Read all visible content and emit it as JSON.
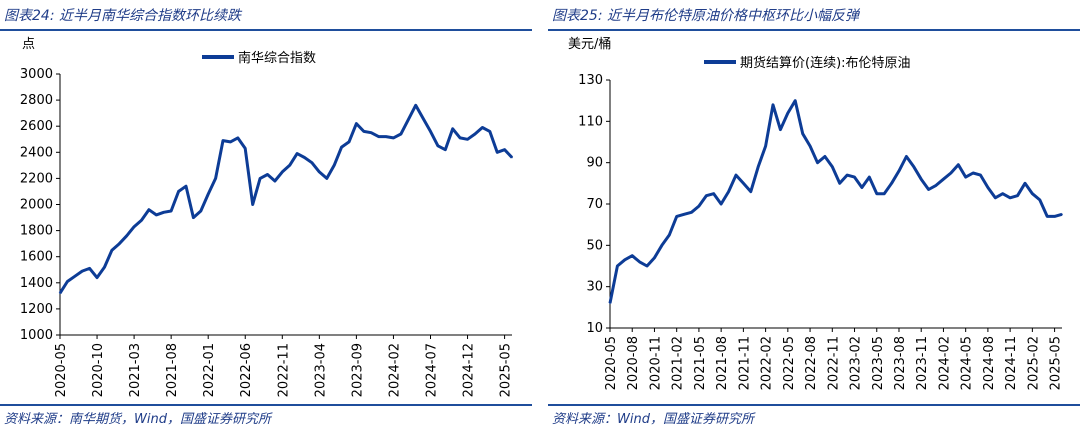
{
  "left": {
    "title": "图表24:  近半月南华综合指数环比续跌",
    "source": "资料来源：南华期货，Wind，国盛证券研究所",
    "chart_data": {
      "type": "line",
      "unit_label": "点",
      "legend": "南华综合指数",
      "legend_position": "top-center",
      "ylim": [
        1000,
        3000
      ],
      "yticks": [
        1000,
        1200,
        1400,
        1600,
        1800,
        2000,
        2200,
        2400,
        2600,
        2800,
        3000
      ],
      "xlim": [
        "2020-05",
        "2025-06"
      ],
      "xticks": [
        "2020-05",
        "2020-10",
        "2021-03",
        "2021-08",
        "2022-01",
        "2022-06",
        "2022-11",
        "2023-04",
        "2023-09",
        "2024-02",
        "2024-07",
        "2024-12",
        "2025-05"
      ],
      "color": "#0d3c96",
      "series": [
        {
          "points": [
            [
              "2020-05",
              1320
            ],
            [
              "2020-06",
              1410
            ],
            [
              "2020-07",
              1450
            ],
            [
              "2020-08",
              1490
            ],
            [
              "2020-09",
              1510
            ],
            [
              "2020-10",
              1440
            ],
            [
              "2020-11",
              1520
            ],
            [
              "2020-12",
              1650
            ],
            [
              "2021-01",
              1700
            ],
            [
              "2021-02",
              1760
            ],
            [
              "2021-03",
              1830
            ],
            [
              "2021-04",
              1880
            ],
            [
              "2021-05",
              1960
            ],
            [
              "2021-06",
              1920
            ],
            [
              "2021-07",
              1940
            ],
            [
              "2021-08",
              1950
            ],
            [
              "2021-09",
              2100
            ],
            [
              "2021-10",
              2140
            ],
            [
              "2021-11",
              1900
            ],
            [
              "2021-12",
              1950
            ],
            [
              "2022-01",
              2080
            ],
            [
              "2022-02",
              2200
            ],
            [
              "2022-03",
              2490
            ],
            [
              "2022-04",
              2480
            ],
            [
              "2022-05",
              2510
            ],
            [
              "2022-06",
              2430
            ],
            [
              "2022-07",
              2000
            ],
            [
              "2022-08",
              2200
            ],
            [
              "2022-09",
              2230
            ],
            [
              "2022-10",
              2180
            ],
            [
              "2022-11",
              2250
            ],
            [
              "2022-12",
              2300
            ],
            [
              "2023-01",
              2390
            ],
            [
              "2023-02",
              2360
            ],
            [
              "2023-03",
              2320
            ],
            [
              "2023-04",
              2250
            ],
            [
              "2023-05",
              2200
            ],
            [
              "2023-06",
              2300
            ],
            [
              "2023-07",
              2440
            ],
            [
              "2023-08",
              2480
            ],
            [
              "2023-09",
              2620
            ],
            [
              "2023-10",
              2560
            ],
            [
              "2023-11",
              2550
            ],
            [
              "2023-12",
              2520
            ],
            [
              "2024-01",
              2520
            ],
            [
              "2024-02",
              2510
            ],
            [
              "2024-03",
              2540
            ],
            [
              "2024-04",
              2650
            ],
            [
              "2024-05",
              2760
            ],
            [
              "2024-06",
              2660
            ],
            [
              "2024-07",
              2560
            ],
            [
              "2024-08",
              2450
            ],
            [
              "2024-09",
              2420
            ],
            [
              "2024-10",
              2580
            ],
            [
              "2024-11",
              2510
            ],
            [
              "2024-12",
              2500
            ],
            [
              "2025-01",
              2540
            ],
            [
              "2025-02",
              2590
            ],
            [
              "2025-03",
              2560
            ],
            [
              "2025-04",
              2400
            ],
            [
              "2025-05",
              2420
            ],
            [
              "2025-06",
              2360
            ]
          ]
        }
      ]
    }
  },
  "right": {
    "title": "图表25:  近半月布伦特原油价格中枢环比小幅反弹",
    "source": "资料来源：Wind，国盛证券研究所",
    "chart_data": {
      "type": "line",
      "unit_label": "美元/桶",
      "legend": "期货结算价(连续):布伦特原油",
      "legend_position": "top-center",
      "ylim": [
        10,
        130
      ],
      "yticks": [
        10,
        30,
        50,
        70,
        90,
        110,
        130
      ],
      "xlim": [
        "2020-05",
        "2025-06"
      ],
      "xticks": [
        "2020-05",
        "2020-08",
        "2020-11",
        "2021-02",
        "2021-05",
        "2021-08",
        "2021-11",
        "2022-02",
        "2022-05",
        "2022-08",
        "2022-11",
        "2023-02",
        "2023-05",
        "2023-08",
        "2023-11",
        "2024-02",
        "2024-05",
        "2024-08",
        "2024-11",
        "2025-02",
        "2025-05"
      ],
      "color": "#0d3c96",
      "series": [
        {
          "points": [
            [
              "2020-05",
              22
            ],
            [
              "2020-06",
              40
            ],
            [
              "2020-07",
              43
            ],
            [
              "2020-08",
              45
            ],
            [
              "2020-09",
              42
            ],
            [
              "2020-10",
              40
            ],
            [
              "2020-11",
              44
            ],
            [
              "2020-12",
              50
            ],
            [
              "2021-01",
              55
            ],
            [
              "2021-02",
              64
            ],
            [
              "2021-03",
              65
            ],
            [
              "2021-04",
              66
            ],
            [
              "2021-05",
              69
            ],
            [
              "2021-06",
              74
            ],
            [
              "2021-07",
              75
            ],
            [
              "2021-08",
              70
            ],
            [
              "2021-09",
              76
            ],
            [
              "2021-10",
              84
            ],
            [
              "2021-11",
              80
            ],
            [
              "2021-12",
              76
            ],
            [
              "2022-01",
              88
            ],
            [
              "2022-02",
              98
            ],
            [
              "2022-03",
              118
            ],
            [
              "2022-04",
              106
            ],
            [
              "2022-05",
              114
            ],
            [
              "2022-06",
              120
            ],
            [
              "2022-07",
              104
            ],
            [
              "2022-08",
              98
            ],
            [
              "2022-09",
              90
            ],
            [
              "2022-10",
              93
            ],
            [
              "2022-11",
              88
            ],
            [
              "2022-12",
              80
            ],
            [
              "2023-01",
              84
            ],
            [
              "2023-02",
              83
            ],
            [
              "2023-03",
              78
            ],
            [
              "2023-04",
              83
            ],
            [
              "2023-05",
              75
            ],
            [
              "2023-06",
              75
            ],
            [
              "2023-07",
              80
            ],
            [
              "2023-08",
              86
            ],
            [
              "2023-09",
              93
            ],
            [
              "2023-10",
              88
            ],
            [
              "2023-11",
              82
            ],
            [
              "2023-12",
              77
            ],
            [
              "2024-01",
              79
            ],
            [
              "2024-02",
              82
            ],
            [
              "2024-03",
              85
            ],
            [
              "2024-04",
              89
            ],
            [
              "2024-05",
              83
            ],
            [
              "2024-06",
              85
            ],
            [
              "2024-07",
              84
            ],
            [
              "2024-08",
              78
            ],
            [
              "2024-09",
              73
            ],
            [
              "2024-10",
              75
            ],
            [
              "2024-11",
              73
            ],
            [
              "2024-12",
              74
            ],
            [
              "2025-01",
              80
            ],
            [
              "2025-02",
              75
            ],
            [
              "2025-03",
              72
            ],
            [
              "2025-04",
              64
            ],
            [
              "2025-05",
              64
            ],
            [
              "2025-06",
              65
            ]
          ]
        }
      ]
    }
  }
}
